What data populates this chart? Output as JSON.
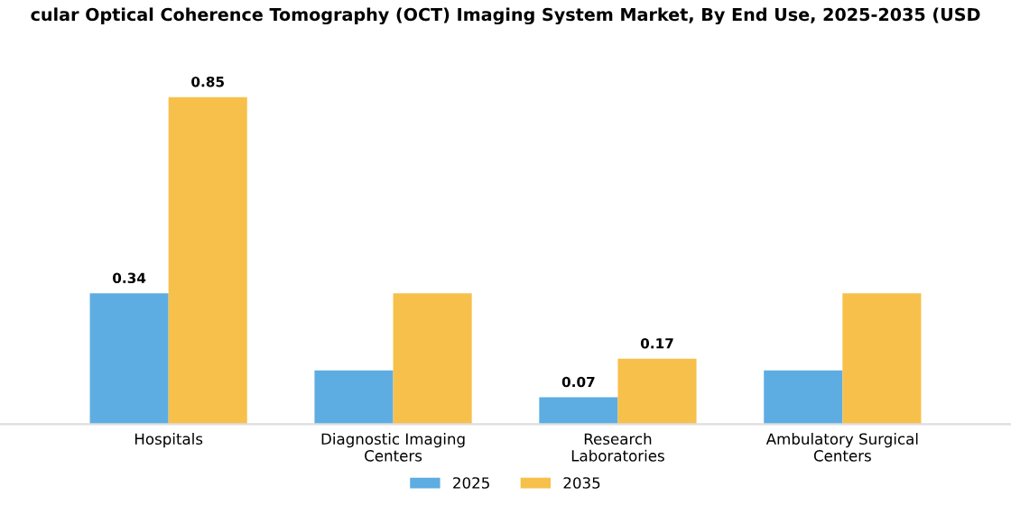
{
  "chart_data": {
    "type": "bar",
    "title": "cular Optical Coherence Tomography (OCT) Imaging System Market, By End Use, 2025-2035 (USD",
    "categories": [
      "Hospitals",
      "Diagnostic Imaging\nCenters",
      "Research\nLaboratories",
      "Ambulatory Surgical\nCenters"
    ],
    "series": [
      {
        "name": "2025",
        "color": "#5dade2",
        "values": [
          0.34,
          0.14,
          0.07,
          0.14
        ],
        "value_labels": [
          "0.34",
          null,
          "0.07",
          null
        ]
      },
      {
        "name": "2035",
        "color": "#f7c04a",
        "values": [
          0.85,
          0.34,
          0.17,
          0.34
        ],
        "value_labels": [
          "0.85",
          null,
          "0.17",
          null
        ]
      }
    ],
    "legend": "bottom",
    "grid": false
  }
}
